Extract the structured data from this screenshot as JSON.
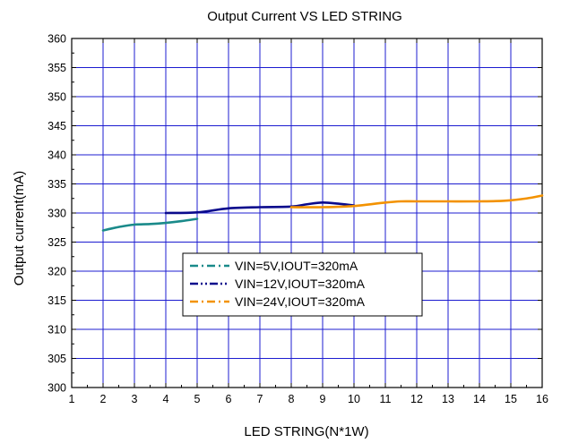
{
  "chart_data": {
    "type": "line",
    "title": "Output Current VS LED STRING",
    "xlabel": "LED STRING(N*1W)",
    "ylabel": "Output current(mA)",
    "xlim": [
      1,
      16
    ],
    "ylim": [
      300,
      360
    ],
    "xticks": [
      "1",
      "2",
      "3",
      "4",
      "5",
      "6",
      "7",
      "8",
      "9",
      "10",
      "11",
      "12",
      "13",
      "14",
      "15",
      "16"
    ],
    "yticks": [
      "300",
      "305",
      "310",
      "315",
      "320",
      "325",
      "330",
      "335",
      "340",
      "345",
      "350",
      "355",
      "360"
    ],
    "grid": true,
    "legend_position": "center-left",
    "series": [
      {
        "name": "VIN=5V,IOUT=320mA",
        "color": "#1a8a8a",
        "dash": "dash-dot",
        "x": [
          2,
          2.5,
          3,
          3.5,
          4,
          4.5,
          5
        ],
        "y": [
          327.0,
          327.6,
          328.0,
          328.1,
          328.3,
          328.6,
          329.0
        ]
      },
      {
        "name": "VIN=12V,IOUT=320mA",
        "color": "#0a0a8c",
        "dash": "dash-dot-dot",
        "x": [
          4,
          5,
          6,
          7,
          8,
          8.5,
          9,
          9.5,
          10
        ],
        "y": [
          330.0,
          330.1,
          330.8,
          331.0,
          331.1,
          331.5,
          331.8,
          331.6,
          331.3
        ]
      },
      {
        "name": "VIN=24V,IOUT=320mA",
        "color": "#f39200",
        "dash": "dash-dot",
        "x": [
          8,
          9,
          10,
          11,
          11.5,
          12,
          13,
          14,
          14.8,
          15.5,
          16
        ],
        "y": [
          331.0,
          331.0,
          331.2,
          331.8,
          332.0,
          332.0,
          332.0,
          332.0,
          332.1,
          332.5,
          333.0
        ]
      }
    ]
  }
}
